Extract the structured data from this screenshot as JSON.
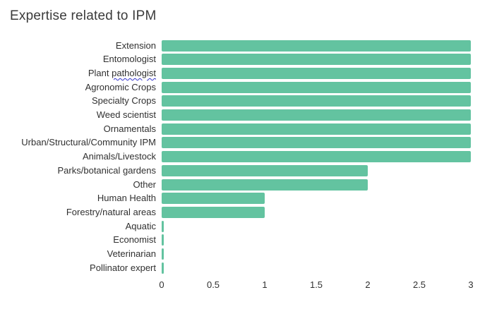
{
  "chart_data": {
    "type": "bar",
    "orientation": "horizontal",
    "title": "Expertise related to IPM",
    "categories": [
      "Extension",
      "Entomologist",
      "Plant pathologist",
      "Agronomic Crops",
      "Specialty Crops",
      "Weed scientist",
      "Ornamentals",
      "Urban/Structural/Community IPM",
      "Animals/Livestock",
      "Parks/botanical gardens",
      "Other",
      "Human Health",
      "Forestry/natural areas",
      "Aquatic",
      "Economist",
      "Veterinarian",
      "Pollinator expert"
    ],
    "values": [
      3,
      3,
      3,
      3,
      3,
      3,
      3,
      3,
      3,
      2,
      2,
      1,
      1,
      0,
      0,
      0,
      0
    ],
    "xlabel": "",
    "ylabel": "",
    "xlim": [
      0,
      3
    ],
    "x_tick_labels": [
      "0",
      "0.5",
      "1",
      "1.5",
      "2",
      "2.5",
      "3"
    ],
    "x_tick_values": [
      0,
      0.5,
      1,
      1.5,
      2,
      2.5,
      3
    ],
    "grid": false,
    "legend": null,
    "bar_color": "#63c3a0",
    "background_color": "#ffffff",
    "text_color": "#303030",
    "spellcheck_underlined_word": "pathologist"
  }
}
